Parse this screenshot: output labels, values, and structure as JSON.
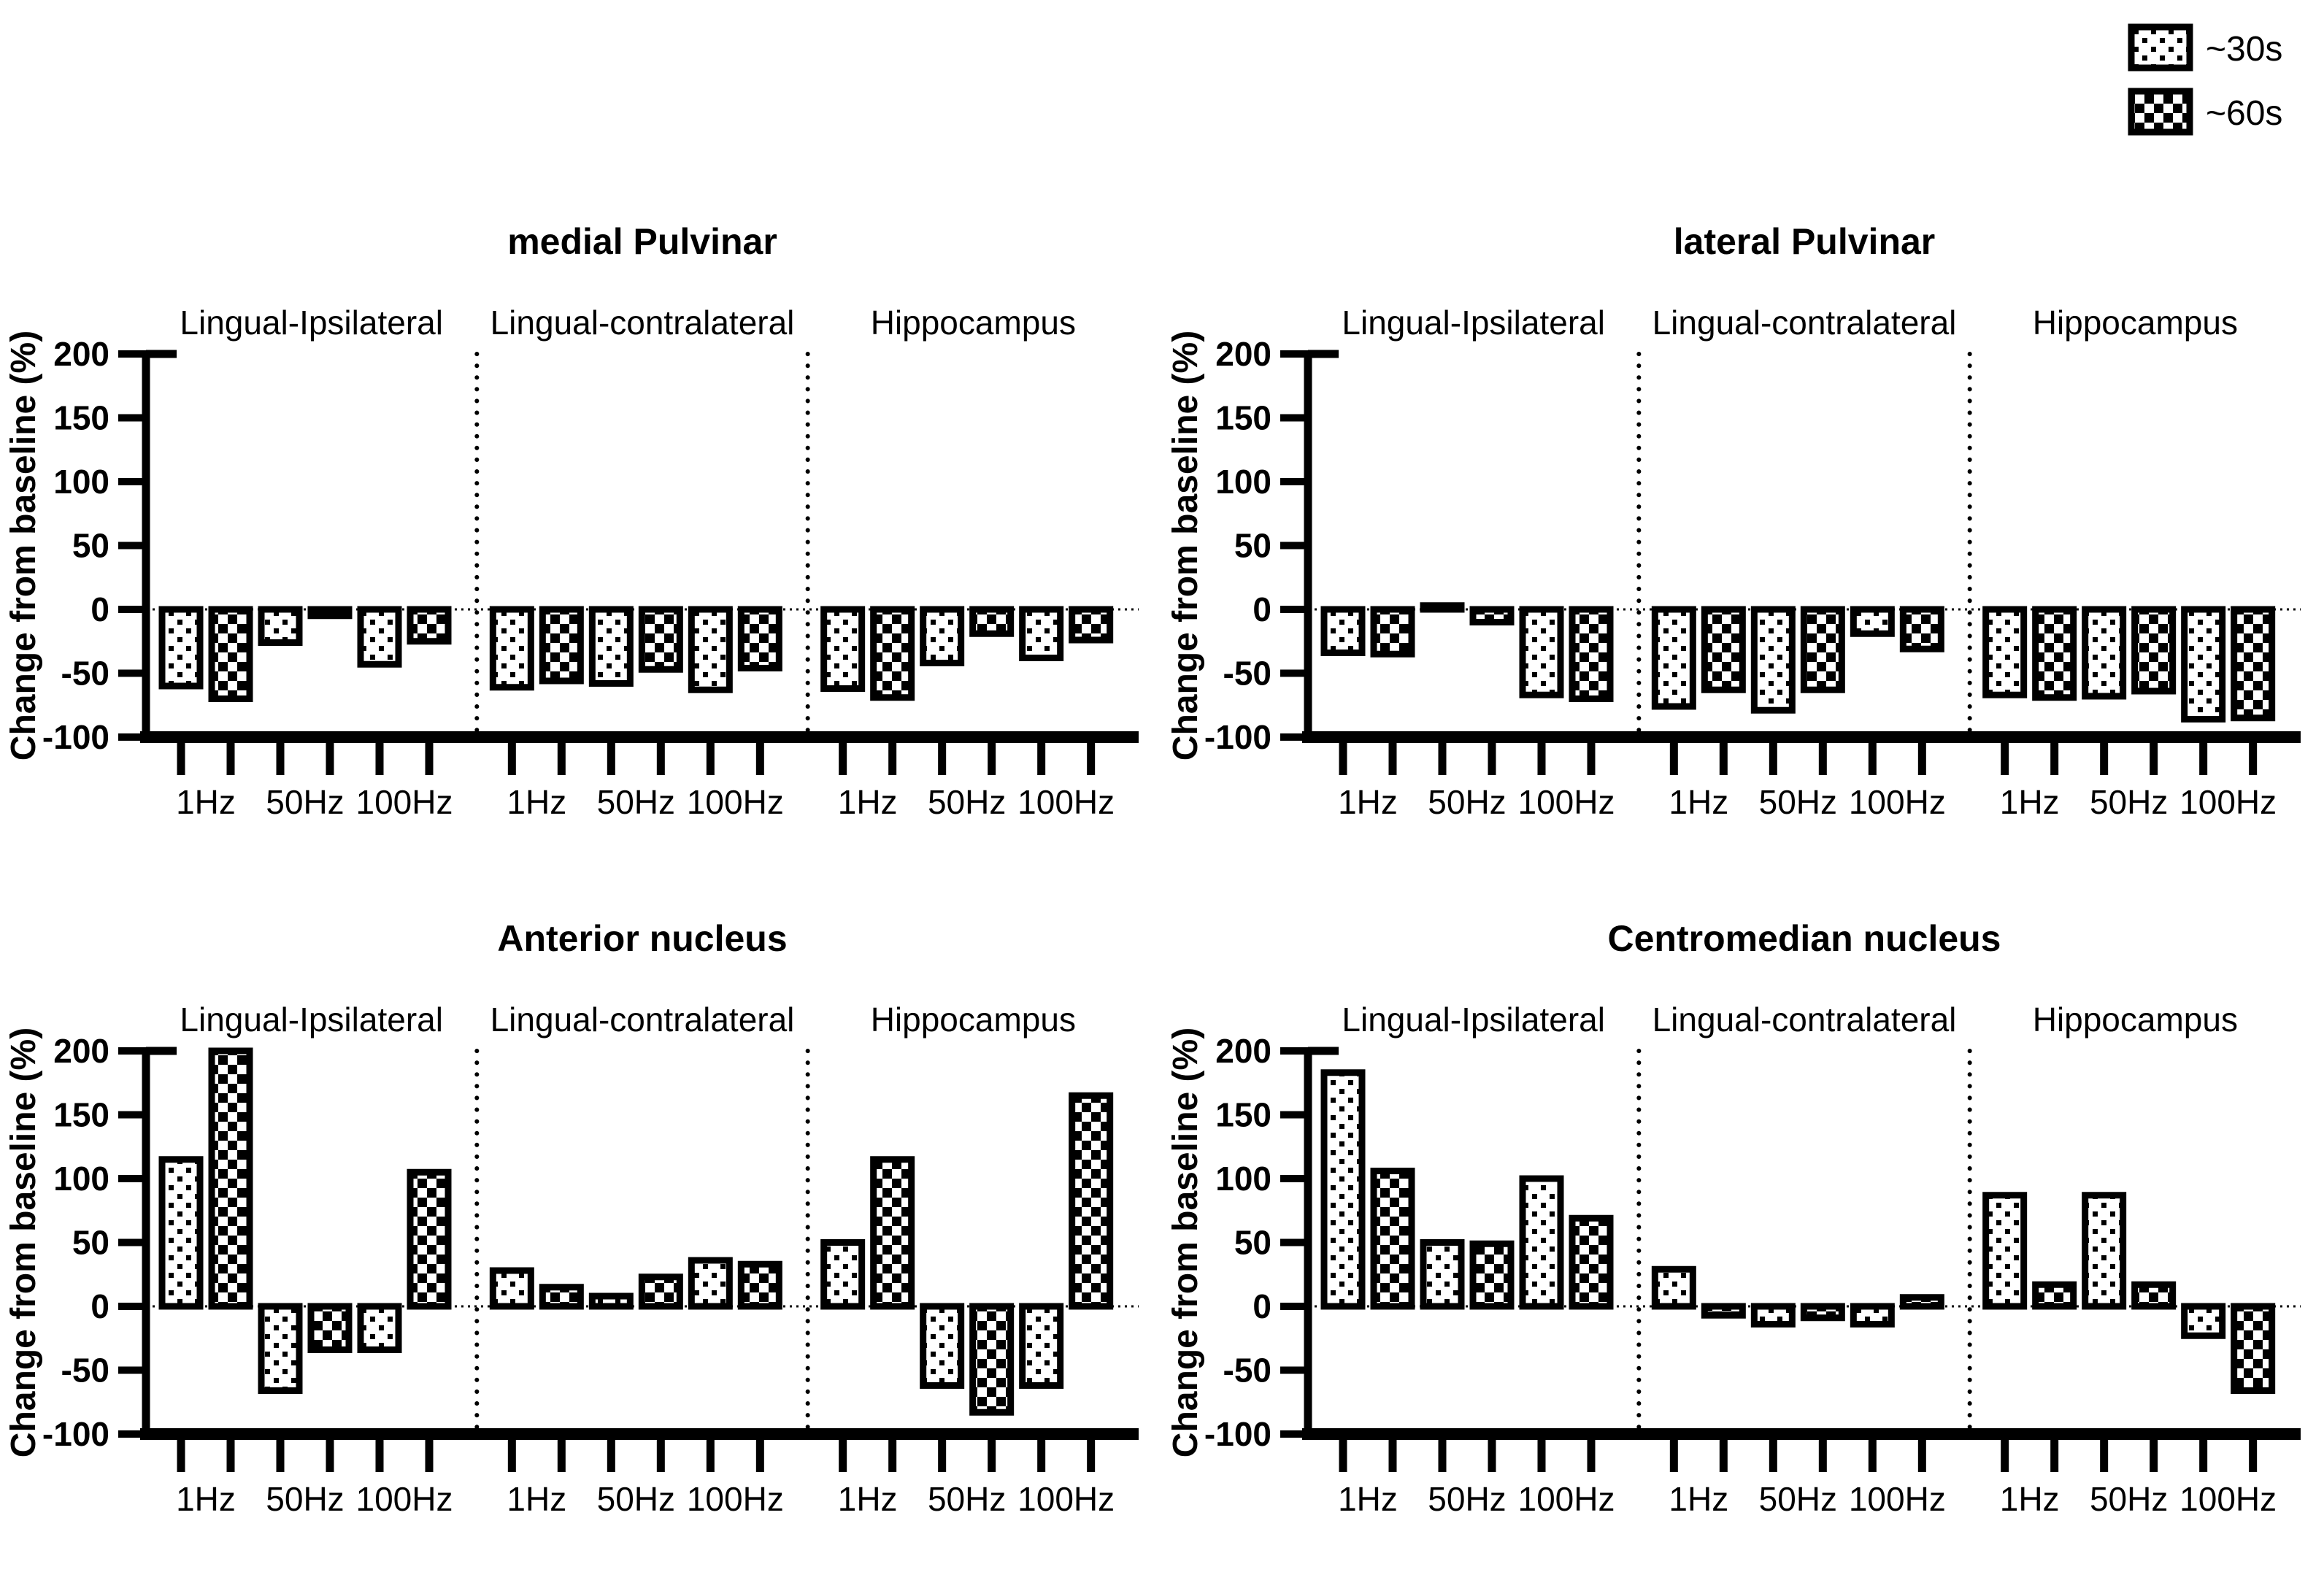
{
  "figure": {
    "background": "#ffffff",
    "ink": "#000000",
    "description": "Four bar charts of stimulation responses by thalamic target"
  },
  "legend": {
    "position": "top-right",
    "items": [
      {
        "label": "~30s",
        "pattern": "dots"
      },
      {
        "label": "~60s",
        "pattern": "checkerboard"
      }
    ]
  },
  "chart_data": [
    {
      "type": "bar",
      "title": "medial Pulvinar",
      "ylabel": "Change from baseline (%)",
      "ylim": [
        -100,
        200
      ],
      "yticks": [
        200,
        150,
        100,
        50,
        0,
        -50,
        -100
      ],
      "grid": false,
      "legend_position": "figure-top-right",
      "categories": [
        "1Hz",
        "50Hz",
        "100Hz"
      ],
      "sections": [
        {
          "label": "Lingual-Ipsilateral",
          "series": [
            {
              "name": "~30s",
              "pattern": "dots",
              "values": [
                -60,
                -26,
                -43
              ]
            },
            {
              "name": "~60s",
              "pattern": "checkerboard",
              "values": [
                -70,
                -5,
                -25
              ]
            }
          ]
        },
        {
          "label": "Lingual-contralateral",
          "series": [
            {
              "name": "~30s",
              "pattern": "dots",
              "values": [
                -61,
                -58,
                -63
              ]
            },
            {
              "name": "~60s",
              "pattern": "checkerboard",
              "values": [
                -56,
                -47,
                -46
              ]
            }
          ]
        },
        {
          "label": "Hippocampus",
          "series": [
            {
              "name": "~30s",
              "pattern": "dots",
              "values": [
                -62,
                -42,
                -38
              ]
            },
            {
              "name": "~60s",
              "pattern": "checkerboard",
              "values": [
                -69,
                -19,
                -24
              ]
            }
          ]
        }
      ]
    },
    {
      "type": "bar",
      "title": "lateral Pulvinar",
      "ylabel": "Change from baseline (%)",
      "ylim": [
        -100,
        200
      ],
      "yticks": [
        200,
        150,
        100,
        50,
        0,
        -50,
        -100
      ],
      "grid": false,
      "categories": [
        "1Hz",
        "50Hz",
        "100Hz"
      ],
      "sections": [
        {
          "label": "Lingual-Ipsilateral",
          "series": [
            {
              "name": "~30s",
              "pattern": "dots",
              "values": [
                -34,
                3,
                -67
              ]
            },
            {
              "name": "~60s",
              "pattern": "checkerboard",
              "values": [
                -35,
                -10,
                -70
              ]
            }
          ]
        },
        {
          "label": "Lingual-contralateral",
          "series": [
            {
              "name": "~30s",
              "pattern": "dots",
              "values": [
                -76,
                -79,
                -19
              ]
            },
            {
              "name": "~60s",
              "pattern": "checkerboard",
              "values": [
                -63,
                -63,
                -31
              ]
            }
          ]
        },
        {
          "label": "Hippocampus",
          "series": [
            {
              "name": "~30s",
              "pattern": "dots",
              "values": [
                -67,
                -68,
                -86
              ]
            },
            {
              "name": "~60s",
              "pattern": "checkerboard",
              "values": [
                -69,
                -64,
                -85
              ]
            }
          ]
        }
      ]
    },
    {
      "type": "bar",
      "title": "Anterior nucleus",
      "ylabel": "Change from baseline (%)",
      "ylim": [
        -100,
        200
      ],
      "yticks": [
        200,
        150,
        100,
        50,
        0,
        -50,
        -100
      ],
      "grid": false,
      "categories": [
        "1Hz",
        "50Hz",
        "100Hz"
      ],
      "sections": [
        {
          "label": "Lingual-Ipsilateral",
          "series": [
            {
              "name": "~30s",
              "pattern": "dots",
              "values": [
                115,
                -66,
                -34
              ]
            },
            {
              "name": "~60s",
              "pattern": "checkerboard",
              "values": [
                200,
                -34,
                105
              ]
            }
          ]
        },
        {
          "label": "Lingual-contralateral",
          "series": [
            {
              "name": "~30s",
              "pattern": "dots",
              "values": [
                28,
                8,
                36
              ]
            },
            {
              "name": "~60s",
              "pattern": "checkerboard",
              "values": [
                15,
                23,
                33
              ]
            }
          ]
        },
        {
          "label": "Hippocampus",
          "series": [
            {
              "name": "~30s",
              "pattern": "dots",
              "values": [
                50,
                -62,
                -62
              ]
            },
            {
              "name": "~60s",
              "pattern": "checkerboard",
              "values": [
                115,
                -83,
                165
              ]
            }
          ]
        }
      ]
    },
    {
      "type": "bar",
      "title": "Centromedian nucleus",
      "ylabel": "Change from baseline (%)",
      "ylim": [
        -100,
        200
      ],
      "yticks": [
        200,
        150,
        100,
        50,
        0,
        -50,
        -100
      ],
      "grid": false,
      "categories": [
        "1Hz",
        "50Hz",
        "100Hz"
      ],
      "sections": [
        {
          "label": "Lingual-Ipsilateral",
          "series": [
            {
              "name": "~30s",
              "pattern": "dots",
              "values": [
                183,
                50,
                100
              ]
            },
            {
              "name": "~60s",
              "pattern": "checkerboard",
              "values": [
                106,
                49,
                69
              ]
            }
          ]
        },
        {
          "label": "Lingual-contralateral",
          "series": [
            {
              "name": "~30s",
              "pattern": "dots",
              "values": [
                29,
                -14,
                -14
              ]
            },
            {
              "name": "~60s",
              "pattern": "checkerboard",
              "values": [
                -7,
                -9,
                7
              ]
            }
          ]
        },
        {
          "label": "Hippocampus",
          "series": [
            {
              "name": "~30s",
              "pattern": "dots",
              "values": [
                87,
                87,
                -23
              ]
            },
            {
              "name": "~60s",
              "pattern": "checkerboard",
              "values": [
                17,
                17,
                -66
              ]
            }
          ]
        }
      ]
    }
  ]
}
